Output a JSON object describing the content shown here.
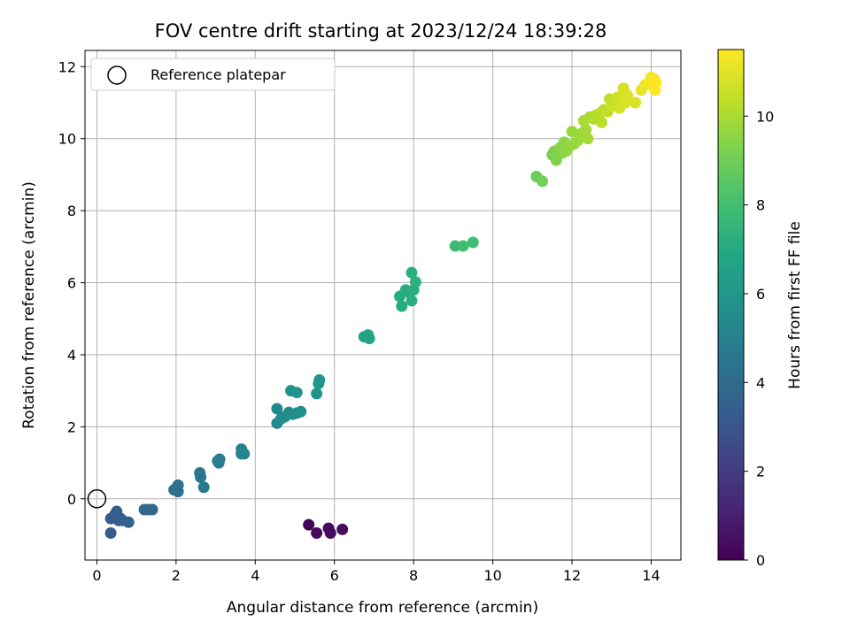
{
  "chart_data": {
    "type": "scatter",
    "title": "FOV centre drift starting at 2023/12/24 18:39:28",
    "xlabel": "Angular distance from reference (arcmin)",
    "ylabel": "Rotation from reference (arcmin)",
    "xlim": [
      -0.3,
      14.75
    ],
    "ylim": [
      -1.7,
      12.45
    ],
    "xticks": [
      0,
      2,
      4,
      6,
      8,
      10,
      12,
      14
    ],
    "yticks": [
      0,
      2,
      4,
      6,
      8,
      10,
      12
    ],
    "grid": true,
    "legend": {
      "placement": "top-left",
      "entries": [
        {
          "label": "Reference platepar",
          "marker": "open-circle"
        }
      ]
    },
    "reference_point": {
      "x": 0,
      "y": 0
    },
    "colorbar": {
      "label": "Hours from first FF file",
      "range": [
        0,
        11.5
      ],
      "ticks": [
        0,
        2,
        4,
        6,
        8,
        10
      ],
      "colormap": "viridis"
    },
    "points": [
      {
        "x": 5.35,
        "y": -0.72,
        "c": 0.1
      },
      {
        "x": 5.55,
        "y": -0.95,
        "c": 0.2
      },
      {
        "x": 5.85,
        "y": -0.82,
        "c": 0.3
      },
      {
        "x": 5.9,
        "y": -0.95,
        "c": 0.3
      },
      {
        "x": 6.2,
        "y": -0.85,
        "c": 0.4
      },
      {
        "x": 0.35,
        "y": -0.95,
        "c": 3.2
      },
      {
        "x": 0.35,
        "y": -0.55,
        "c": 3.3
      },
      {
        "x": 0.45,
        "y": -0.45,
        "c": 3.3
      },
      {
        "x": 0.5,
        "y": -0.35,
        "c": 3.4
      },
      {
        "x": 0.55,
        "y": -0.6,
        "c": 3.4
      },
      {
        "x": 0.6,
        "y": -0.55,
        "c": 3.5
      },
      {
        "x": 0.65,
        "y": -0.6,
        "c": 3.5
      },
      {
        "x": 0.8,
        "y": -0.65,
        "c": 3.6
      },
      {
        "x": 1.2,
        "y": -0.3,
        "c": 3.8
      },
      {
        "x": 1.3,
        "y": -0.3,
        "c": 3.8
      },
      {
        "x": 1.4,
        "y": -0.3,
        "c": 3.9
      },
      {
        "x": 1.95,
        "y": 0.25,
        "c": 4.2
      },
      {
        "x": 2.05,
        "y": 0.38,
        "c": 4.2
      },
      {
        "x": 2.05,
        "y": 0.2,
        "c": 4.3
      },
      {
        "x": 2.6,
        "y": 0.72,
        "c": 4.5
      },
      {
        "x": 2.62,
        "y": 0.6,
        "c": 4.5
      },
      {
        "x": 2.7,
        "y": 0.32,
        "c": 4.6
      },
      {
        "x": 3.05,
        "y": 1.05,
        "c": 4.8
      },
      {
        "x": 3.1,
        "y": 1.1,
        "c": 4.8
      },
      {
        "x": 3.08,
        "y": 1.0,
        "c": 4.9
      },
      {
        "x": 3.65,
        "y": 1.38,
        "c": 5.1
      },
      {
        "x": 3.65,
        "y": 1.25,
        "c": 5.1
      },
      {
        "x": 3.72,
        "y": 1.25,
        "c": 5.2
      },
      {
        "x": 4.55,
        "y": 2.5,
        "c": 5.4
      },
      {
        "x": 4.55,
        "y": 2.1,
        "c": 5.4
      },
      {
        "x": 4.65,
        "y": 2.22,
        "c": 5.5
      },
      {
        "x": 4.75,
        "y": 2.28,
        "c": 5.5
      },
      {
        "x": 4.85,
        "y": 2.4,
        "c": 5.6
      },
      {
        "x": 4.95,
        "y": 2.35,
        "c": 5.6
      },
      {
        "x": 5.05,
        "y": 2.38,
        "c": 5.6
      },
      {
        "x": 5.15,
        "y": 2.42,
        "c": 5.7
      },
      {
        "x": 4.9,
        "y": 3.0,
        "c": 5.7
      },
      {
        "x": 5.05,
        "y": 2.95,
        "c": 5.8
      },
      {
        "x": 5.55,
        "y": 2.92,
        "c": 5.8
      },
      {
        "x": 5.6,
        "y": 3.2,
        "c": 5.9
      },
      {
        "x": 5.62,
        "y": 3.3,
        "c": 5.9
      },
      {
        "x": 6.75,
        "y": 4.5,
        "c": 6.6
      },
      {
        "x": 6.85,
        "y": 4.55,
        "c": 6.7
      },
      {
        "x": 6.88,
        "y": 4.45,
        "c": 6.7
      },
      {
        "x": 7.65,
        "y": 5.62,
        "c": 7.0
      },
      {
        "x": 7.7,
        "y": 5.35,
        "c": 7.0
      },
      {
        "x": 7.8,
        "y": 5.8,
        "c": 7.1
      },
      {
        "x": 7.9,
        "y": 5.72,
        "c": 7.1
      },
      {
        "x": 7.95,
        "y": 5.5,
        "c": 7.2
      },
      {
        "x": 7.95,
        "y": 6.28,
        "c": 7.2
      },
      {
        "x": 8.0,
        "y": 5.8,
        "c": 7.2
      },
      {
        "x": 8.05,
        "y": 6.02,
        "c": 7.3
      },
      {
        "x": 9.05,
        "y": 7.02,
        "c": 7.8
      },
      {
        "x": 9.25,
        "y": 7.02,
        "c": 7.9
      },
      {
        "x": 9.5,
        "y": 7.12,
        "c": 7.9
      },
      {
        "x": 11.1,
        "y": 8.95,
        "c": 8.9
      },
      {
        "x": 11.25,
        "y": 8.82,
        "c": 9.0
      },
      {
        "x": 11.5,
        "y": 9.55,
        "c": 9.2
      },
      {
        "x": 11.55,
        "y": 9.65,
        "c": 9.3
      },
      {
        "x": 11.6,
        "y": 9.4,
        "c": 9.3
      },
      {
        "x": 11.7,
        "y": 9.75,
        "c": 9.4
      },
      {
        "x": 11.75,
        "y": 9.6,
        "c": 9.4
      },
      {
        "x": 11.8,
        "y": 9.9,
        "c": 9.5
      },
      {
        "x": 11.85,
        "y": 9.65,
        "c": 9.5
      },
      {
        "x": 11.9,
        "y": 9.75,
        "c": 9.6
      },
      {
        "x": 12.0,
        "y": 10.2,
        "c": 9.7
      },
      {
        "x": 12.05,
        "y": 9.85,
        "c": 9.7
      },
      {
        "x": 12.15,
        "y": 9.95,
        "c": 9.8
      },
      {
        "x": 12.25,
        "y": 10.15,
        "c": 9.8
      },
      {
        "x": 12.35,
        "y": 10.25,
        "c": 9.9
      },
      {
        "x": 12.4,
        "y": 10.0,
        "c": 9.9
      },
      {
        "x": 12.3,
        "y": 10.5,
        "c": 10.0
      },
      {
        "x": 12.45,
        "y": 10.6,
        "c": 10.0
      },
      {
        "x": 12.55,
        "y": 10.55,
        "c": 10.1
      },
      {
        "x": 12.6,
        "y": 10.65,
        "c": 10.2
      },
      {
        "x": 12.7,
        "y": 10.7,
        "c": 10.2
      },
      {
        "x": 12.75,
        "y": 10.45,
        "c": 10.3
      },
      {
        "x": 12.8,
        "y": 10.8,
        "c": 10.3
      },
      {
        "x": 12.9,
        "y": 10.75,
        "c": 10.4
      },
      {
        "x": 12.95,
        "y": 11.1,
        "c": 10.4
      },
      {
        "x": 13.0,
        "y": 10.9,
        "c": 10.5
      },
      {
        "x": 13.05,
        "y": 11.05,
        "c": 10.5
      },
      {
        "x": 13.1,
        "y": 10.95,
        "c": 10.6
      },
      {
        "x": 13.15,
        "y": 11.15,
        "c": 10.6
      },
      {
        "x": 13.2,
        "y": 10.85,
        "c": 10.7
      },
      {
        "x": 13.25,
        "y": 11.1,
        "c": 10.7
      },
      {
        "x": 13.3,
        "y": 11.4,
        "c": 10.8
      },
      {
        "x": 13.35,
        "y": 11.0,
        "c": 10.8
      },
      {
        "x": 13.4,
        "y": 11.2,
        "c": 10.9
      },
      {
        "x": 13.6,
        "y": 11.0,
        "c": 10.9
      },
      {
        "x": 13.75,
        "y": 11.35,
        "c": 11.1
      },
      {
        "x": 13.85,
        "y": 11.5,
        "c": 11.2
      },
      {
        "x": 13.95,
        "y": 11.55,
        "c": 11.3
      },
      {
        "x": 14.0,
        "y": 11.7,
        "c": 11.3
      },
      {
        "x": 14.05,
        "y": 11.45,
        "c": 11.4
      },
      {
        "x": 14.08,
        "y": 11.65,
        "c": 11.4
      },
      {
        "x": 14.1,
        "y": 11.35,
        "c": 11.5
      },
      {
        "x": 14.12,
        "y": 11.55,
        "c": 11.5
      }
    ]
  }
}
